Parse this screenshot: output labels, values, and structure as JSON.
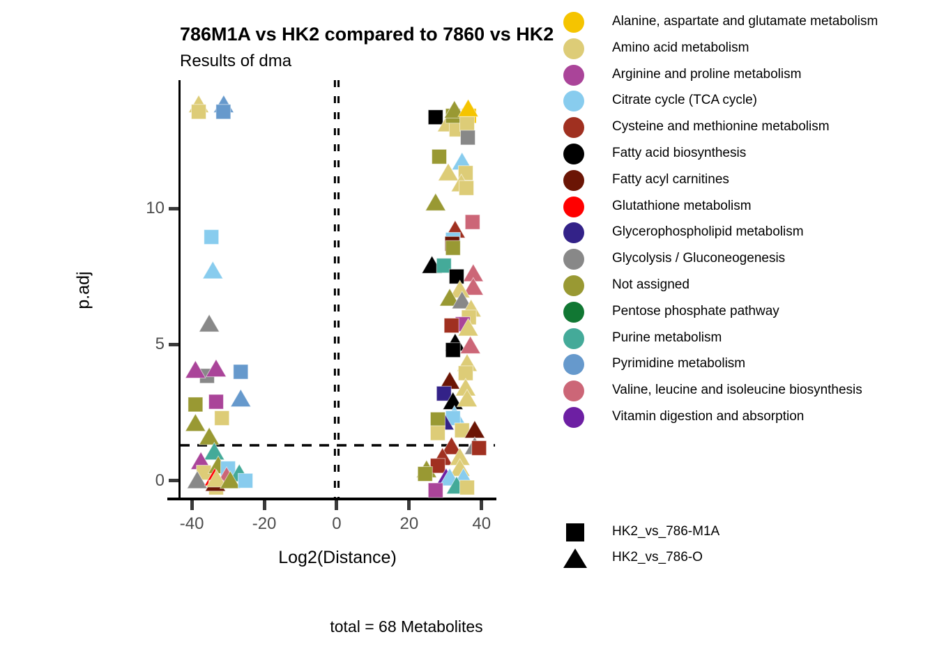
{
  "chart_data": {
    "type": "scatter",
    "title": "786M1A vs HK2 compared to 7860 vs HK2",
    "subtitle": "Results of dma",
    "caption": "total = 68 Metabolites",
    "xlabel": "Log2(Distance)",
    "ylabel": "p.adj",
    "xlim": [
      -43.3,
      43.7
    ],
    "ylim": [
      -0.67,
      14.71
    ],
    "xticks": [
      -40,
      -20,
      0,
      20,
      40
    ],
    "yticks": [
      0,
      5,
      10
    ],
    "grid": "off",
    "reference_lines": {
      "horizontal_dashed_y": 1.3,
      "vertical_dashed_x": [
        -0.5,
        0.5
      ]
    },
    "legend_position": "right",
    "categories": [
      {
        "key": "alanine",
        "label": "Alanine, aspartate and glutamate metabolism",
        "color": "#F5C400"
      },
      {
        "key": "amino",
        "label": "Amino acid metabolism",
        "color": "#DDCC77"
      },
      {
        "key": "arginine",
        "label": "Arginine and proline metabolism",
        "color": "#AA4499"
      },
      {
        "key": "citrate",
        "label": "Citrate cycle (TCA cycle)",
        "color": "#88CCEE"
      },
      {
        "key": "cysteine",
        "label": "Cysteine and methionine metabolism",
        "color": "#A03020"
      },
      {
        "key": "fattyAcidBio",
        "label": "Fatty acid biosynthesis",
        "color": "#000000"
      },
      {
        "key": "fattyAcyl",
        "label": "Fatty acyl carnitines",
        "color": "#6B1505"
      },
      {
        "key": "glutathione",
        "label": "Glutathione metabolism",
        "color": "#FF0000"
      },
      {
        "key": "glycerophospholipid",
        "label": "Glycerophospholipid metabolism",
        "color": "#332288"
      },
      {
        "key": "glycolysis",
        "label": "Glycolysis / Gluconeogenesis",
        "color": "#888888"
      },
      {
        "key": "notAssigned",
        "label": "Not assigned",
        "color": "#999933"
      },
      {
        "key": "pentose",
        "label": "Pentose phosphate pathway",
        "color": "#117733"
      },
      {
        "key": "purine",
        "label": "Purine metabolism",
        "color": "#44AA99"
      },
      {
        "key": "pyrimidine",
        "label": "Pyrimidine metabolism",
        "color": "#6699CC"
      },
      {
        "key": "valine",
        "label": "Valine, leucine and isoleucine biosynthesis",
        "color": "#CC6677"
      },
      {
        "key": "vitamin",
        "label": "Vitamin digestion and absorption",
        "color": "#6D1FA3"
      }
    ],
    "shape_legend": [
      {
        "shape": "square",
        "label": "HK2_vs_786-M1A"
      },
      {
        "shape": "triangle",
        "label": "HK2_vs_786-O"
      }
    ],
    "points_format": [
      "x",
      "y",
      "category_key",
      "shape (s=square, t=triangle)"
    ],
    "points": [
      [
        -38.1,
        13.8,
        "amino",
        "t"
      ],
      [
        -38.1,
        13.55,
        "amino",
        "s"
      ],
      [
        -31.2,
        13.8,
        "pyrimidine",
        "t"
      ],
      [
        -31.3,
        13.55,
        "pyrimidine",
        "s"
      ],
      [
        -34.6,
        8.95,
        "citrate",
        "s"
      ],
      [
        -34.2,
        7.7,
        "citrate",
        "t"
      ],
      [
        -35.2,
        5.75,
        "glycolysis",
        "t"
      ],
      [
        -35.8,
        3.85,
        "glycolysis",
        "s"
      ],
      [
        -39.0,
        4.05,
        "arginine",
        "t"
      ],
      [
        -33.3,
        4.1,
        "arginine",
        "t"
      ],
      [
        -26.5,
        4.0,
        "pyrimidine",
        "s"
      ],
      [
        -33.3,
        2.9,
        "arginine",
        "s"
      ],
      [
        -26.5,
        3.0,
        "pyrimidine",
        "t"
      ],
      [
        -39.0,
        2.8,
        "notAssigned",
        "s"
      ],
      [
        -31.7,
        2.3,
        "amino",
        "s"
      ],
      [
        -39.0,
        2.1,
        "notAssigned",
        "t"
      ],
      [
        -35.2,
        1.6,
        "notAssigned",
        "t"
      ],
      [
        -33.8,
        1.05,
        "purine",
        "t"
      ],
      [
        -37.5,
        0.7,
        "arginine",
        "t"
      ],
      [
        -36.7,
        0.3,
        "amino",
        "s"
      ],
      [
        -32.7,
        0.55,
        "notAssigned",
        "t"
      ],
      [
        -30.0,
        0.45,
        "citrate",
        "s"
      ],
      [
        -26.9,
        0.25,
        "purine",
        "t"
      ],
      [
        -38.5,
        0.0,
        "glycolysis",
        "t"
      ],
      [
        -30.4,
        0.15,
        "valine",
        "t"
      ],
      [
        -33.7,
        0.1,
        "glutathione",
        "t"
      ],
      [
        -33.3,
        -0.25,
        "amino",
        "s"
      ],
      [
        -33.5,
        -0.1,
        "fattyAcyl",
        "t"
      ],
      [
        -33.2,
        0.05,
        "amino",
        "t"
      ],
      [
        -29.4,
        0.0,
        "notAssigned",
        "t"
      ],
      [
        -25.2,
        0.0,
        "citrate",
        "s"
      ],
      [
        27.3,
        13.35,
        "fattyAcidBio",
        "s"
      ],
      [
        30.6,
        13.1,
        "amino",
        "t"
      ],
      [
        33.1,
        12.9,
        "amino",
        "s"
      ],
      [
        32.1,
        13.4,
        "notAssigned",
        "s"
      ],
      [
        32.5,
        13.6,
        "notAssigned",
        "t"
      ],
      [
        36.5,
        13.4,
        "alanine",
        "s"
      ],
      [
        36.3,
        13.65,
        "alanine",
        "t"
      ],
      [
        36.0,
        13.1,
        "amino",
        "s"
      ],
      [
        36.2,
        12.6,
        "glycolysis",
        "s"
      ],
      [
        28.3,
        11.9,
        "notAssigned",
        "s"
      ],
      [
        34.6,
        11.7,
        "citrate",
        "t"
      ],
      [
        30.8,
        11.3,
        "amino",
        "t"
      ],
      [
        35.6,
        11.3,
        "amino",
        "s"
      ],
      [
        34.4,
        10.9,
        "amino",
        "t"
      ],
      [
        35.8,
        10.75,
        "amino",
        "s"
      ],
      [
        27.3,
        10.2,
        "notAssigned",
        "t"
      ],
      [
        37.5,
        9.5,
        "valine",
        "s"
      ],
      [
        32.7,
        9.2,
        "cysteine",
        "t"
      ],
      [
        32.1,
        8.85,
        "citrate",
        "s"
      ],
      [
        31.9,
        8.7,
        "fattyAcyl",
        "s"
      ],
      [
        32.1,
        8.55,
        "notAssigned",
        "s"
      ],
      [
        26.3,
        7.9,
        "fattyAcidBio",
        "t"
      ],
      [
        29.6,
        7.9,
        "purine",
        "s"
      ],
      [
        37.7,
        7.6,
        "valine",
        "t"
      ],
      [
        33.1,
        7.5,
        "fattyAcidBio",
        "s"
      ],
      [
        37.7,
        7.1,
        "valine",
        "t"
      ],
      [
        34.0,
        7.0,
        "amino",
        "t"
      ],
      [
        31.2,
        6.7,
        "notAssigned",
        "t"
      ],
      [
        34.6,
        6.6,
        "glycolysis",
        "t"
      ],
      [
        37.1,
        6.3,
        "amino",
        "t"
      ],
      [
        36.5,
        6.0,
        "amino",
        "s"
      ],
      [
        34.8,
        5.75,
        "arginine",
        "s"
      ],
      [
        31.7,
        5.7,
        "cysteine",
        "s"
      ],
      [
        36.3,
        5.6,
        "amino",
        "t"
      ],
      [
        32.7,
        5.05,
        "fattyAcidBio",
        "t"
      ],
      [
        36.9,
        4.95,
        "valine",
        "t"
      ],
      [
        32.1,
        4.8,
        "fattyAcidBio",
        "s"
      ],
      [
        36.0,
        4.3,
        "amino",
        "t"
      ],
      [
        35.6,
        3.95,
        "amino",
        "s"
      ],
      [
        31.2,
        3.65,
        "fattyAcyl",
        "t"
      ],
      [
        29.6,
        3.2,
        "glycerophospholipid",
        "s"
      ],
      [
        35.6,
        3.4,
        "amino",
        "t"
      ],
      [
        32.1,
        2.9,
        "fattyAcidBio",
        "t"
      ],
      [
        36.0,
        3.0,
        "amino",
        "t"
      ],
      [
        32.5,
        2.4,
        "citrate",
        "t"
      ],
      [
        32.1,
        2.3,
        "citrate",
        "s"
      ],
      [
        29.6,
        2.15,
        "glycerophospholipid",
        "t"
      ],
      [
        27.9,
        2.25,
        "notAssigned",
        "s"
      ],
      [
        34.6,
        1.85,
        "amino",
        "s"
      ],
      [
        38.1,
        1.85,
        "fattyAcyl",
        "t"
      ],
      [
        27.9,
        1.75,
        "amino",
        "s"
      ],
      [
        31.7,
        1.25,
        "cysteine",
        "t"
      ],
      [
        38.1,
        1.25,
        "glycolysis",
        "t"
      ],
      [
        39.3,
        1.2,
        "cysteine",
        "s"
      ],
      [
        29.2,
        0.85,
        "cysteine",
        "t"
      ],
      [
        34.0,
        0.85,
        "amino",
        "t"
      ],
      [
        24.8,
        0.4,
        "notAssigned",
        "t"
      ],
      [
        27.9,
        0.55,
        "cysteine",
        "s"
      ],
      [
        24.4,
        0.25,
        "notAssigned",
        "s"
      ],
      [
        34.0,
        0.45,
        "amino",
        "t"
      ],
      [
        30.2,
        0.1,
        "vitamin",
        "t"
      ],
      [
        31.2,
        0.1,
        "citrate",
        "t"
      ],
      [
        35.0,
        0.1,
        "citrate",
        "t"
      ],
      [
        33.1,
        -0.2,
        "purine",
        "t"
      ],
      [
        36.0,
        -0.25,
        "amino",
        "s"
      ],
      [
        27.3,
        -0.35,
        "arginine",
        "s"
      ]
    ]
  }
}
